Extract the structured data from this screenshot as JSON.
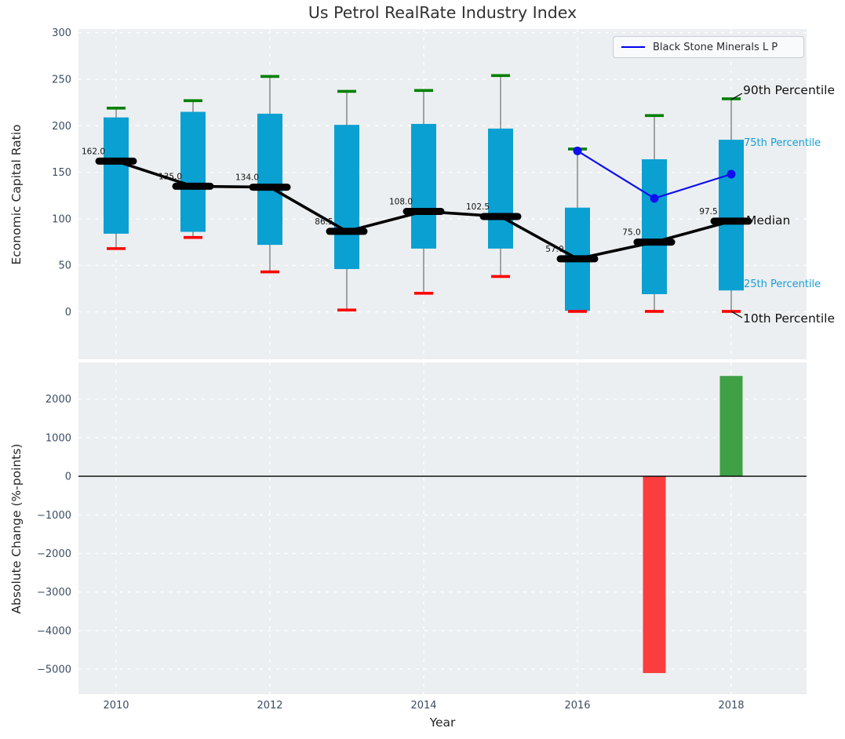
{
  "title": "Us Petrol RealRate Industry Index",
  "legend": {
    "label": "Black Stone Minerals L P"
  },
  "annotations": {
    "p90": "90th Percentile",
    "p75": "75th Percentile",
    "median": "Median",
    "p25": "25th Percentile",
    "p10": "10th Percentile"
  },
  "colors": {
    "axes_bg": "#eceff1",
    "grid": "#ffffff",
    "box": "#0ba0d2",
    "whisker": "#777777",
    "cap_high": "#008000",
    "cap_low": "#ff0000",
    "median": "#000000",
    "company_line": "#0f0fee",
    "bar_positive": "#3fa045",
    "bar_negative": "#fa3e3e",
    "tick_label": "#3b4d63",
    "zero_line": "#000000",
    "annotation_blue": "#159fd6"
  },
  "chart_data": [
    {
      "type": "boxplot",
      "ylabel": "Economic Capital Ratio",
      "ylim": [
        -51,
        304
      ],
      "yticks": [
        300,
        250,
        200,
        150,
        100,
        50,
        0
      ],
      "ytick_labels": [
        "300",
        "250",
        "200",
        "150",
        "100",
        "50",
        "0"
      ],
      "grid": true,
      "years": [
        2010,
        2011,
        2012,
        2013,
        2014,
        2015,
        2016,
        2017,
        2018
      ],
      "percentiles": {
        "p90": [
          219,
          227,
          253,
          237,
          238,
          254,
          175,
          211,
          229
        ],
        "p75": [
          209,
          215,
          213,
          201,
          202,
          197,
          112,
          164,
          185
        ],
        "median": [
          162.0,
          135.0,
          134.0,
          86.5,
          108.0,
          102.5,
          57.0,
          75.0,
          97.5
        ],
        "p25": [
          84,
          86,
          72,
          46,
          68,
          68,
          1,
          19,
          23
        ],
        "p10": [
          68,
          80,
          43,
          2,
          20,
          38,
          0.5,
          0.5,
          0.5
        ]
      },
      "median_labels": [
        "162.0",
        "135.0",
        "134.0",
        "86.5",
        "108.0",
        "102.5",
        "57.0",
        "75.0",
        "97.5"
      ],
      "company_line": {
        "name": "Black Stone Minerals L P",
        "x": [
          2016,
          2017,
          2018
        ],
        "y": [
          173,
          122,
          148
        ]
      },
      "legend_position": "upper right"
    },
    {
      "type": "bar",
      "xlabel": "Year",
      "ylabel": "Absolute Change (%-points)",
      "ylim": [
        -5650,
        2950
      ],
      "yticks": [
        2000,
        1000,
        0,
        -1000,
        -2000,
        -3000,
        -4000,
        -5000
      ],
      "ytick_labels": [
        "2000",
        "1000",
        "0",
        "−1000",
        "−2000",
        "−3000",
        "−4000",
        "−5000"
      ],
      "xticks": [
        2010,
        2012,
        2014,
        2016,
        2018
      ],
      "xtick_labels": [
        "2010",
        "2012",
        "2014",
        "2016",
        "2018"
      ],
      "grid": true,
      "categories": [
        2010,
        2011,
        2012,
        2013,
        2014,
        2015,
        2016,
        2017,
        2018
      ],
      "values": [
        0,
        0,
        0,
        0,
        0,
        0,
        0,
        -5100,
        2600
      ]
    }
  ]
}
